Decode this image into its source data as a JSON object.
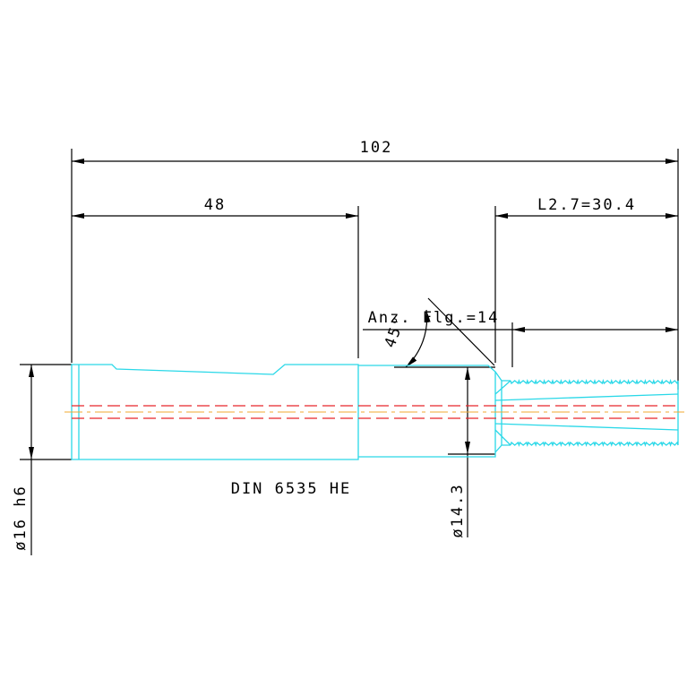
{
  "dimensions": {
    "overall_length": "102",
    "shank_length": "48",
    "thread_length": "L2.7=30.4",
    "flutes": "Anz. Flg.=14",
    "angle": "45°",
    "shank_diameter": "ø16 h6",
    "neck_diameter": "ø14.3"
  },
  "designation": "DIN 6535 HE"
}
